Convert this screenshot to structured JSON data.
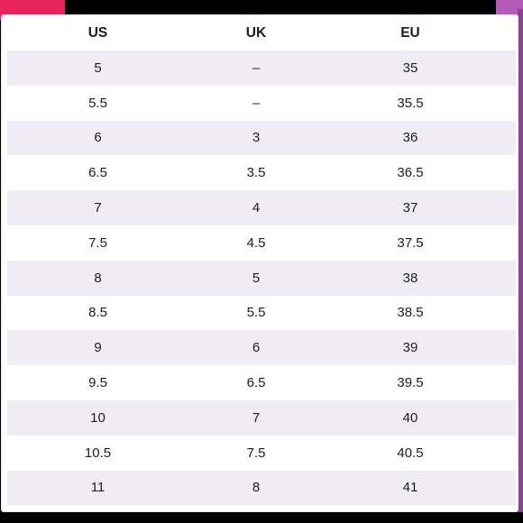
{
  "table": {
    "headers": [
      "US",
      "UK",
      "EU"
    ],
    "rows": [
      [
        "5",
        "–",
        "35"
      ],
      [
        "5.5",
        "–",
        "35.5"
      ],
      [
        "6",
        "3",
        "36"
      ],
      [
        "6.5",
        "3.5",
        "36.5"
      ],
      [
        "7",
        "4",
        "37"
      ],
      [
        "7.5",
        "4.5",
        "37.5"
      ],
      [
        "8",
        "5",
        "38"
      ],
      [
        "8.5",
        "5.5",
        "38.5"
      ],
      [
        "9",
        "6",
        "39"
      ],
      [
        "9.5",
        "6.5",
        "39.5"
      ],
      [
        "10",
        "7",
        "40"
      ],
      [
        "10.5",
        "7.5",
        "40.5"
      ],
      [
        "11",
        "8",
        "41"
      ]
    ]
  },
  "colors": {
    "row_shade": "#efecf6",
    "accent_pink": "#e6245c",
    "accent_purple": "#b45bb9",
    "text": "#1d1d1f"
  }
}
